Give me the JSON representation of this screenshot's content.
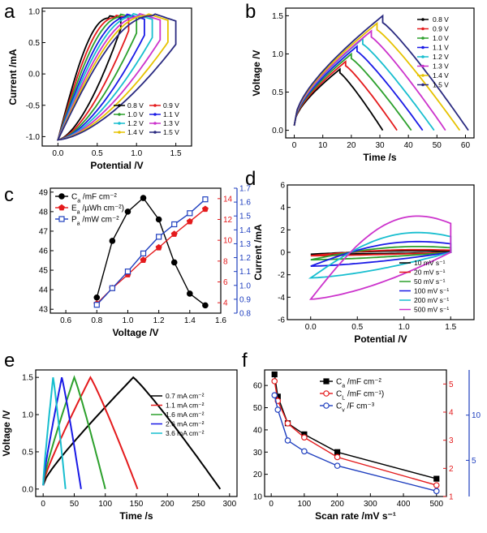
{
  "chart_data": [
    {
      "panel": "a",
      "type": "line",
      "xlabel": "Potential /V",
      "ylabel": "Current /mA",
      "xlim": [
        -0.2,
        1.7
      ],
      "ylim": [
        -1.15,
        1.05
      ],
      "xticks": [
        "0.0",
        "0.5",
        "1.0",
        "1.5"
      ],
      "yticks": [
        "-1.0",
        "-0.5",
        "0.0",
        "0.5",
        "1.0"
      ],
      "series": [
        {
          "name": "0.8 V",
          "color": "#000000",
          "vmax": 0.8,
          "ipeak": 0.93,
          "iend": 0.86
        },
        {
          "name": "0.9 V",
          "color": "#e41a1c",
          "vmax": 0.9,
          "ipeak": 0.94,
          "iend": 0.82
        },
        {
          "name": "1.0 V",
          "color": "#2ca02c",
          "vmax": 1.0,
          "ipeak": 0.95,
          "iend": 0.78
        },
        {
          "name": "1.1 V",
          "color": "#1a1ae6",
          "vmax": 1.1,
          "ipeak": 0.95,
          "iend": 0.74
        },
        {
          "name": "1.2 V",
          "color": "#17becf",
          "vmax": 1.2,
          "ipeak": 0.96,
          "iend": 0.7
        },
        {
          "name": "1.3 V",
          "color": "#cc33cc",
          "vmax": 1.3,
          "ipeak": 0.96,
          "iend": 0.66
        },
        {
          "name": "1.4 V",
          "color": "#e6c200",
          "vmax": 1.4,
          "ipeak": 0.97,
          "iend": 0.62
        },
        {
          "name": "1.5 V",
          "color": "#2a2a80",
          "vmax": 1.5,
          "ipeak": 0.97,
          "iend": 0.58
        }
      ],
      "legend": "bottom-right"
    },
    {
      "panel": "b",
      "type": "line",
      "xlabel": "Time /s",
      "ylabel": "Voltage /V",
      "xlim": [
        -3,
        63
      ],
      "ylim": [
        -0.1,
        1.6
      ],
      "xticks": [
        "0",
        "10",
        "20",
        "30",
        "40",
        "50",
        "60"
      ],
      "yticks": [
        "0.0",
        "0.5",
        "1.0",
        "1.5"
      ],
      "series": [
        {
          "name": "0.8 V",
          "color": "#000000",
          "vmax": 0.8,
          "tc": 16,
          "td": 31
        },
        {
          "name": "0.9 V",
          "color": "#e41a1c",
          "vmax": 0.9,
          "tc": 18,
          "td": 36
        },
        {
          "name": "1.0 V",
          "color": "#2ca02c",
          "vmax": 1.0,
          "tc": 20,
          "td": 41
        },
        {
          "name": "1.1 V",
          "color": "#1a1ae6",
          "vmax": 1.1,
          "tc": 22,
          "td": 45
        },
        {
          "name": "1.2 V",
          "color": "#17becf",
          "vmax": 1.2,
          "tc": 24,
          "td": 49
        },
        {
          "name": "1.3 V",
          "color": "#cc33cc",
          "vmax": 1.3,
          "tc": 27,
          "td": 53
        },
        {
          "name": "1.4 V",
          "color": "#e6c200",
          "vmax": 1.4,
          "tc": 29,
          "td": 58
        },
        {
          "name": "1.5 V",
          "color": "#2a2a80",
          "vmax": 1.5,
          "tc": 31,
          "td": 61
        }
      ],
      "legend": "top-right"
    },
    {
      "panel": "c",
      "type": "line",
      "xlabel": "Voltage /V",
      "xlim": [
        0.5,
        1.6
      ],
      "ylim": [
        42.8,
        49.2
      ],
      "y2lim": [
        3,
        15
      ],
      "y3lim": [
        0.8,
        1.7
      ],
      "xticks": [
        "0.6",
        "0.8",
        "1.0",
        "1.2",
        "1.4",
        "1.6"
      ],
      "yticks": [
        "43",
        "44",
        "45",
        "46",
        "47",
        "48",
        "49"
      ],
      "y2ticks": [
        "4",
        "6",
        "8",
        "10",
        "12",
        "14"
      ],
      "y3ticks": [
        "0.8",
        "0.9",
        "1.0",
        "1.1",
        "1.2",
        "1.3",
        "1.4",
        "1.5",
        "1.6",
        "1.7"
      ],
      "x": [
        0.8,
        0.9,
        1.0,
        1.1,
        1.2,
        1.3,
        1.4,
        1.5
      ],
      "series": [
        {
          "name": "Ca /mF cm⁻²",
          "axis": "left",
          "color": "#000000",
          "marker": "circle",
          "values": [
            43.6,
            46.5,
            48.0,
            48.7,
            47.6,
            45.4,
            43.8,
            43.2
          ]
        },
        {
          "name": "Ea /µWh cm⁻²)",
          "axis": "right",
          "color": "#e41a1c",
          "marker": "pentagon",
          "values": [
            3.9,
            5.4,
            6.7,
            8.1,
            9.3,
            10.6,
            11.8,
            13.0
          ]
        },
        {
          "name": "Pa /mW cm⁻²",
          "axis": "right2",
          "color": "#1f3fbf",
          "marker": "square",
          "values": [
            0.86,
            0.98,
            1.1,
            1.23,
            1.35,
            1.44,
            1.52,
            1.62
          ]
        }
      ],
      "legend": "top-left"
    },
    {
      "panel": "d",
      "type": "line",
      "xlabel": "Potential /V",
      "ylabel": "Current /mA",
      "xlim": [
        -0.25,
        1.75
      ],
      "ylim": [
        -6,
        6
      ],
      "xticks": [
        "0.0",
        "0.5",
        "1.0",
        "1.5"
      ],
      "yticks": [
        "-6",
        "-4",
        "-2",
        "0",
        "2",
        "4",
        "6"
      ],
      "series": [
        {
          "name": "10 mV s⁻¹",
          "color": "#000000",
          "amp": 0.18
        },
        {
          "name": "20 mV s⁻¹",
          "color": "#e41a1c",
          "amp": 0.32
        },
        {
          "name": "50 mV s⁻¹",
          "color": "#2ca02c",
          "amp": 0.7
        },
        {
          "name": "100 mV s⁻¹",
          "color": "#1a1ae6",
          "amp": 1.3
        },
        {
          "name": "200 mV s⁻¹",
          "color": "#17becf",
          "amp": 2.4
        },
        {
          "name": "500 mV s⁻¹",
          "color": "#cc33cc",
          "amp": 4.4
        }
      ],
      "legend": "bottom-right"
    },
    {
      "panel": "e",
      "type": "line",
      "xlabel": "Time /s",
      "ylabel": "Voltage /V",
      "xlim": [
        -12,
        312
      ],
      "ylim": [
        -0.1,
        1.6
      ],
      "xticks": [
        "0",
        "50",
        "100",
        "150",
        "200",
        "250",
        "300"
      ],
      "yticks": [
        "0.0",
        "0.5",
        "1.0",
        "1.5"
      ],
      "series": [
        {
          "name": "0.7 mA cm⁻²",
          "color": "#000000",
          "tc": 145,
          "td": 285
        },
        {
          "name": "1.1 mA cm⁻²",
          "color": "#e41a1c",
          "tc": 76,
          "td": 152
        },
        {
          "name": "1.6 mA cm⁻²",
          "color": "#2ca02c",
          "tc": 50,
          "td": 100
        },
        {
          "name": "2.6 mA cm⁻²",
          "color": "#1a1ae6",
          "tc": 30,
          "td": 61
        },
        {
          "name": "3.6 mA cm⁻²",
          "color": "#17becf",
          "tc": 16,
          "td": 36
        }
      ],
      "legend": "top-right"
    },
    {
      "panel": "f",
      "type": "line",
      "xlabel": "Scan rate /mV s⁻¹",
      "xlim": [
        -20,
        530
      ],
      "ylim": [
        10,
        67
      ],
      "y2lim": [
        1,
        5.5
      ],
      "y3lim": [
        1,
        15
      ],
      "xticks": [
        "0",
        "100",
        "200",
        "300",
        "400",
        "500"
      ],
      "yticks": [
        "10",
        "20",
        "30",
        "40",
        "50",
        "60"
      ],
      "y2ticks": [
        "1",
        "2",
        "3",
        "4",
        "5"
      ],
      "y3ticks": [
        "5",
        "10"
      ],
      "x": [
        10,
        20,
        50,
        100,
        200,
        500
      ],
      "series": [
        {
          "name": "Ca /mF cm⁻²",
          "axis": "left",
          "color": "#000000",
          "marker": "square",
          "values": [
            65,
            55,
            43,
            38,
            30,
            18
          ]
        },
        {
          "name": "CL /mF cm⁻¹)",
          "axis": "right",
          "color": "#e41a1c",
          "marker": "circle",
          "values": [
            5.1,
            4.4,
            3.6,
            3.1,
            2.4,
            1.4
          ]
        },
        {
          "name": "Cv /F cm⁻³",
          "axis": "right2",
          "color": "#1f3fbf",
          "marker": "circle",
          "values": [
            12.2,
            10.6,
            7.2,
            6.0,
            4.4,
            1.6
          ]
        }
      ],
      "legend": "top-right"
    }
  ]
}
